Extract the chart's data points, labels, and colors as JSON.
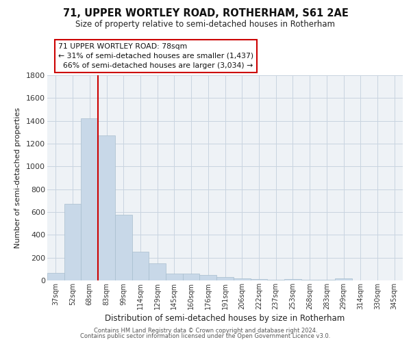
{
  "title": "71, UPPER WORTLEY ROAD, ROTHERHAM, S61 2AE",
  "subtitle": "Size of property relative to semi-detached houses in Rotherham",
  "xlabel": "Distribution of semi-detached houses by size in Rotherham",
  "ylabel": "Number of semi-detached properties",
  "bar_color": "#c8d8e8",
  "bar_edge_color": "#a8bece",
  "grid_color": "#c8d4e0",
  "bg_color": "#eef2f6",
  "annotation_box_color": "#cc0000",
  "vline_color": "#cc0000",
  "categories": [
    "37sqm",
    "52sqm",
    "68sqm",
    "83sqm",
    "99sqm",
    "114sqm",
    "129sqm",
    "145sqm",
    "160sqm",
    "176sqm",
    "191sqm",
    "206sqm",
    "222sqm",
    "237sqm",
    "253sqm",
    "268sqm",
    "283sqm",
    "299sqm",
    "314sqm",
    "330sqm",
    "345sqm"
  ],
  "values": [
    65,
    670,
    1420,
    1275,
    575,
    255,
    150,
    63,
    60,
    48,
    30,
    20,
    13,
    5,
    12,
    5,
    5,
    20,
    3,
    0,
    0
  ],
  "ylim": [
    0,
    1800
  ],
  "yticks": [
    0,
    200,
    400,
    600,
    800,
    1000,
    1200,
    1400,
    1600,
    1800
  ],
  "property_label": "71 UPPER WORTLEY ROAD: 78sqm",
  "pct_smaller": "31%",
  "pct_smaller_count": "1,437",
  "pct_larger": "66%",
  "pct_larger_count": "3,034",
  "vline_x": 2.5,
  "footer1": "Contains HM Land Registry data © Crown copyright and database right 2024.",
  "footer2": "Contains public sector information licensed under the Open Government Licence v3.0."
}
